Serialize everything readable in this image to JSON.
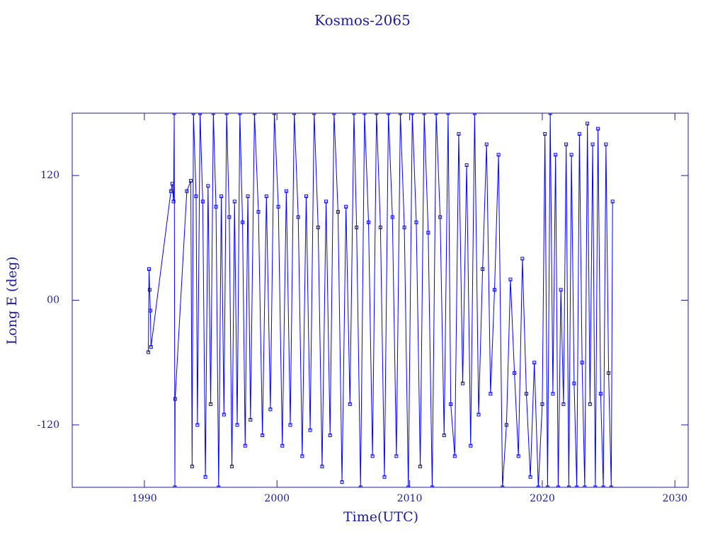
{
  "chart_data": {
    "type": "line",
    "title": "Kosmos-2065",
    "x_label": "Time(UTC)",
    "y_label": "Long E (deg)",
    "xlim": [
      1984.56,
      2031.0
    ],
    "ylim": [
      -180,
      180
    ],
    "xticks": [
      1990,
      2000,
      2010,
      2020,
      2030
    ],
    "yticks": [
      -120,
      {
        "value": 0,
        "label": "00"
      },
      120
    ],
    "grid": false,
    "series": [
      {
        "name": "Kosmos-2065",
        "color": "#0000ff",
        "x": [
          1990.3,
          1990.35,
          1990.4,
          1990.45,
          1990.5,
          1992.0,
          1992.1,
          1992.2,
          1992.25,
          1992.3,
          1992.32,
          1993.2,
          1993.5,
          1993.6,
          1993.7,
          1993.9,
          1994.0,
          1994.2,
          1994.4,
          1994.6,
          1994.8,
          1995.0,
          1995.2,
          1995.4,
          1995.6,
          1995.8,
          1996.0,
          1996.2,
          1996.4,
          1996.6,
          1996.8,
          1997.0,
          1997.2,
          1997.4,
          1997.6,
          1997.8,
          1998.0,
          1998.3,
          1998.6,
          1998.9,
          1999.2,
          1999.5,
          1999.8,
          2000.1,
          2000.4,
          2000.7,
          2001.0,
          2001.3,
          2001.6,
          2001.9,
          2002.2,
          2002.5,
          2002.8,
          2003.1,
          2003.4,
          2003.7,
          2004.0,
          2004.3,
          2004.6,
          2004.9,
          2005.2,
          2005.5,
          2005.8,
          2006.0,
          2006.3,
          2006.6,
          2006.9,
          2007.2,
          2007.5,
          2007.8,
          2008.1,
          2008.4,
          2008.7,
          2009.0,
          2009.3,
          2009.6,
          2009.9,
          2010.2,
          2010.5,
          2010.8,
          2011.1,
          2011.4,
          2011.7,
          2012.0,
          2012.3,
          2012.6,
          2012.9,
          2013.1,
          2013.4,
          2013.7,
          2014.0,
          2014.3,
          2014.6,
          2014.9,
          2015.2,
          2015.5,
          2015.8,
          2016.1,
          2016.4,
          2016.7,
          2017.0,
          2017.3,
          2017.6,
          2017.9,
          2018.2,
          2018.5,
          2018.8,
          2019.1,
          2019.4,
          2019.7,
          2020.0,
          2020.2,
          2020.4,
          2020.6,
          2020.8,
          2021.0,
          2021.2,
          2021.4,
          2021.6,
          2021.8,
          2022.0,
          2022.2,
          2022.4,
          2022.6,
          2022.8,
          2023.0,
          2023.2,
          2023.4,
          2023.6,
          2023.8,
          2024.0,
          2024.2,
          2024.4,
          2024.6,
          2024.8,
          2025.0,
          2025.2,
          2025.3
        ],
        "values": [
          -50,
          30,
          10,
          -10,
          -45,
          105,
          112,
          95,
          180,
          -180,
          -95,
          105,
          115,
          -160,
          180,
          100,
          -120,
          180,
          95,
          -170,
          110,
          -100,
          180,
          90,
          -180,
          100,
          -110,
          180,
          80,
          -160,
          95,
          -120,
          180,
          75,
          -140,
          100,
          -115,
          180,
          85,
          -130,
          100,
          -105,
          180,
          90,
          -140,
          105,
          -120,
          180,
          80,
          -150,
          100,
          -125,
          180,
          70,
          -160,
          95,
          -130,
          180,
          85,
          -175,
          90,
          -100,
          180,
          70,
          -180,
          180,
          75,
          -150,
          180,
          70,
          -170,
          180,
          80,
          -150,
          180,
          70,
          -180,
          180,
          75,
          -160,
          180,
          65,
          -180,
          180,
          80,
          -130,
          180,
          -100,
          -150,
          160,
          -80,
          130,
          -140,
          180,
          -110,
          30,
          150,
          -90,
          10,
          140,
          -180,
          -120,
          20,
          -70,
          -150,
          40,
          -90,
          -170,
          -60,
          -180,
          -100,
          160,
          -180,
          180,
          -90,
          140,
          -180,
          10,
          -100,
          150,
          -180,
          140,
          -80,
          -180,
          160,
          -60,
          -180,
          170,
          -100,
          150,
          -180,
          165,
          -90,
          -180,
          150,
          -70,
          -180,
          95
        ]
      }
    ]
  }
}
